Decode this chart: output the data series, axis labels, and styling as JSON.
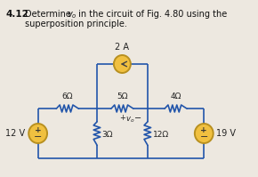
{
  "bg_color": "#ede8e0",
  "wire_color": "#2255aa",
  "source_fill": "#f0c040",
  "source_edge": "#b89020",
  "label_color": "#222222",
  "current_source_label": "2 A",
  "r1_label": "6Ω",
  "r2_label": "5Ω",
  "r3_label": "4Ω",
  "r4_label": "3Ω",
  "r5_label": "12Ω",
  "v1_label": "12 V",
  "v2_label": "19 V",
  "title_num": "4.12",
  "title_rest": "  Determine ",
  "title_vo": "v",
  "title_vo_sub": "o",
  "title_end": " in the circuit of Fig. 4.80 using the",
  "title_line2": "superposition principle."
}
